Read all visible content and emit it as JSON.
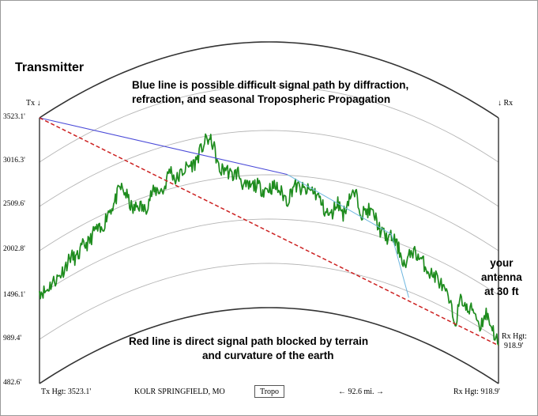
{
  "title": "Transmitter",
  "notes": {
    "blue_line_1": "Blue line is possible difficult signal path by diffraction,",
    "blue_line_2": "refraction, and seasonal Tropospheric Propagation",
    "red_line_1": "Red line is direct signal path blocked by terrain",
    "red_line_2": "and curvature of the earth",
    "antenna_1": "your",
    "antenna_2": "antenna",
    "antenna_3": "at 30 ft"
  },
  "markers": {
    "tx": "Tx ↓",
    "rx": "↓ Rx",
    "rx_hgt_label": "Rx Hgt:",
    "rx_hgt_value": "918.9'"
  },
  "footer": {
    "tx_hgt": "Tx Hgt: 3523.1'",
    "station": "KOLR SPRINGFIELD, MO",
    "tropo_button": "Tropo",
    "distance": "← 92.6 mi. →",
    "rx_hgt": "Rx Hgt: 918.9'"
  },
  "elevation_axis": {
    "unit": "ft",
    "ticks": [
      "3523.1'",
      "3016.3'",
      "2509.6'",
      "2002.8'",
      "1496.1'",
      "989.4'",
      "482.6'"
    ],
    "values": [
      3523.1,
      3016.3,
      2509.6,
      2002.8,
      1496.1,
      989.4,
      482.6
    ],
    "min": 482.6,
    "max": 3523.1
  },
  "path": {
    "distance_mi": 92.6,
    "tx_height_ft": 3523.1,
    "rx_height_ft": 918.9
  },
  "colors": {
    "terrain": "#1e8c1e",
    "direct_path": "#cc2020",
    "tropo_path": "#4a4ad8",
    "tropo_path_light": "#6fb7e0",
    "earth_arc": "#333333",
    "reference_arc": "#b5b5b5"
  },
  "terrain_profile_ft": [
    1540,
    1490,
    1545,
    1560,
    1620,
    1720,
    1650,
    1760,
    1760,
    1880,
    1815,
    2000,
    2060,
    2230,
    2110,
    1900,
    1940,
    1850,
    2010,
    2040,
    2000,
    2240,
    2080,
    2160,
    2210,
    2220,
    2360,
    2480,
    2410,
    2080,
    2110,
    2010,
    2050,
    1870,
    1870,
    1890,
    1830,
    1850,
    1870,
    1800,
    1710,
    1900,
    1860,
    1840,
    1860,
    1790,
    1640,
    1590,
    1780,
    1640,
    1870,
    1900,
    1700,
    1760,
    1720,
    1560,
    1510,
    1540,
    1420,
    1250,
    1480,
    1440,
    1380,
    1300,
    1300,
    1210,
    1100,
    880,
    1210,
    1090,
    1160,
    1000,
    1200,
    1070,
    918.9
  ],
  "tropo_path_ft": [
    [
      0,
      3523.1
    ],
    [
      50,
      2011.6
    ],
    [
      71,
      1570
    ],
    [
      74.5,
      918.9
    ]
  ]
}
